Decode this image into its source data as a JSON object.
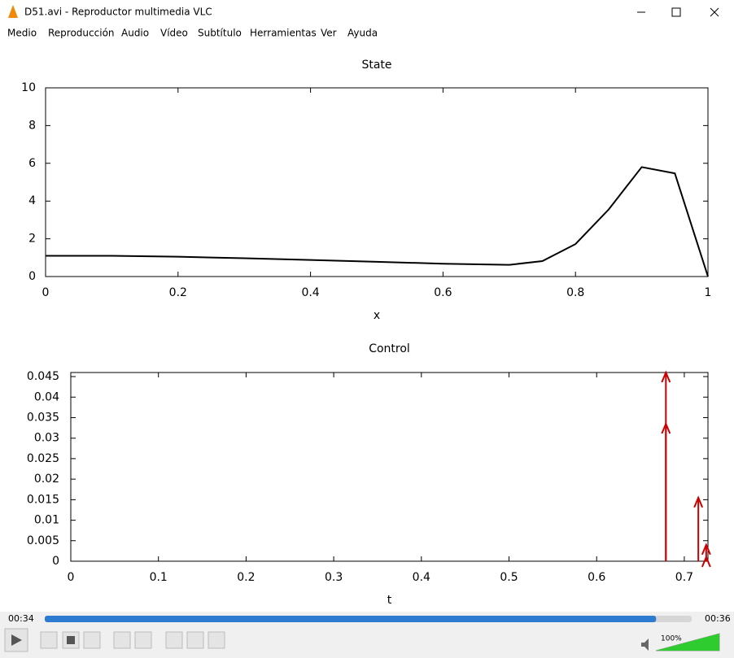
{
  "window": {
    "title": "D51.avi - Reproductor multimedia VLC"
  },
  "menu": [
    "Medio",
    "Reproducción",
    "Audio",
    "Vídeo",
    "Subtítulo",
    "Herramientas",
    "Ver",
    "Ayuda"
  ],
  "chart_data": [
    {
      "type": "line",
      "title": "State",
      "x_label": "x",
      "x": [
        0,
        0.1,
        0.2,
        0.3,
        0.4,
        0.5,
        0.6,
        0.7,
        0.75,
        0.8,
        0.85,
        0.9,
        0.95,
        1
      ],
      "values": [
        1.1,
        1.1,
        1.05,
        0.97,
        0.88,
        0.78,
        0.68,
        0.62,
        0.82,
        1.72,
        3.55,
        5.8,
        5.47,
        0
      ],
      "color": "#000000",
      "xlim": [
        0,
        1
      ],
      "xticks": [
        0,
        0.2,
        0.4,
        0.6,
        0.8,
        1
      ],
      "ylim": [
        0,
        10
      ],
      "yticks": [
        0,
        2,
        4,
        6,
        8,
        10
      ]
    },
    {
      "type": "arrow",
      "title": "Control",
      "x_label": "t",
      "x": [
        0.679,
        0.679,
        0.716,
        0.725,
        0.725
      ],
      "values": [
        0.046,
        0.0335,
        0.0155,
        0.004,
        0.001
      ],
      "color": "#cc0000",
      "xlim": [
        0,
        0.727
      ],
      "xticks": [
        0,
        0.1,
        0.2,
        0.3,
        0.4,
        0.5,
        0.6,
        0.7
      ],
      "ylim": [
        0,
        0.046
      ],
      "yticks": [
        0,
        0.005,
        0.01,
        0.015,
        0.02,
        0.025,
        0.03,
        0.035,
        0.04,
        0.045
      ]
    }
  ],
  "player": {
    "elapsed": "00:34",
    "total": "00:36",
    "progress": 94.5,
    "volume": {
      "value": 100,
      "label": "100%"
    }
  }
}
